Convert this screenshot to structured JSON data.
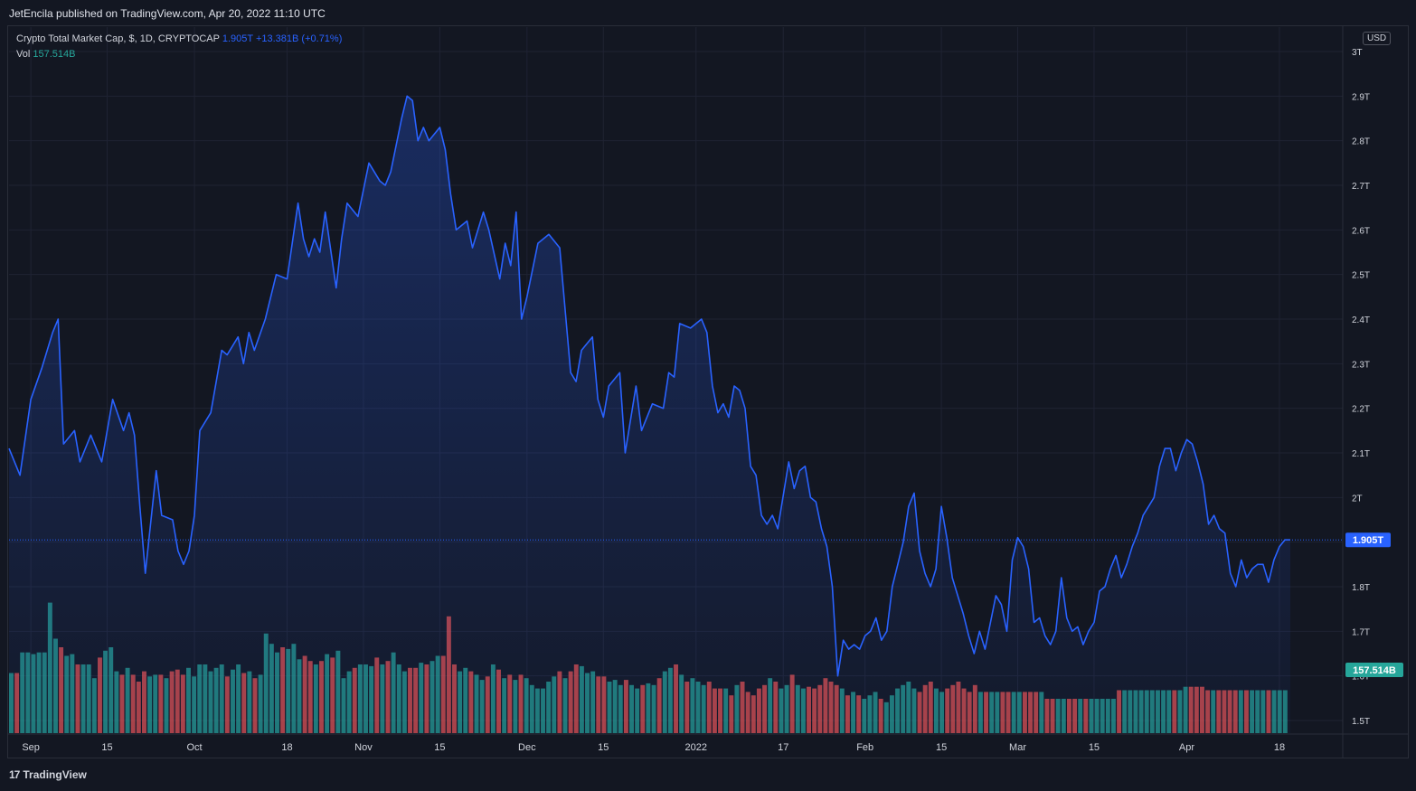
{
  "header": {
    "published": "JetEncila published on TradingView.com, Apr 20, 2022 11:10 UTC"
  },
  "legend": {
    "symbol": "Crypto Total Market Cap, $, 1D, CRYPTOCAP",
    "last": "1.905T",
    "change": "+13.381B (+0.71%)",
    "vol_label": "Vol",
    "vol_value": "157.514B"
  },
  "currency": "USD",
  "footer": {
    "brand": "TradingView",
    "logo_icon": "tradingview-logo-icon"
  },
  "colors": {
    "background": "#131722",
    "line": "#2962ff",
    "up_volume": "#26a69a",
    "down_volume": "#ef5350",
    "grid": "#1f2333",
    "text": "#d1d4dc"
  },
  "chart_data": {
    "type": "line",
    "title": "Crypto Total Market Cap, $, 1D, CRYPTOCAP",
    "ylabel": "",
    "y_ticks": [
      "1.5T",
      "1.6T",
      "1.7T",
      "1.8T",
      "1.9T",
      "2T",
      "2.1T",
      "2.2T",
      "2.3T",
      "2.4T",
      "2.5T",
      "2.6T",
      "2.7T",
      "2.8T",
      "2.9T",
      "3T"
    ],
    "y_tick_values": [
      1.5,
      1.6,
      1.7,
      1.8,
      1.9,
      2.0,
      2.1,
      2.2,
      2.3,
      2.4,
      2.5,
      2.6,
      2.7,
      2.8,
      2.9,
      3.0
    ],
    "ylim": [
      1.47,
      3.0
    ],
    "x_ticks": [
      {
        "label": "Sep",
        "date": "2021-09-01"
      },
      {
        "label": "15",
        "date": "2021-09-15"
      },
      {
        "label": "Oct",
        "date": "2021-10-01"
      },
      {
        "label": "18",
        "date": "2021-10-18"
      },
      {
        "label": "Nov",
        "date": "2021-11-01"
      },
      {
        "label": "15",
        "date": "2021-11-15"
      },
      {
        "label": "Dec",
        "date": "2021-12-01"
      },
      {
        "label": "15",
        "date": "2021-12-15"
      },
      {
        "label": "2022",
        "date": "2022-01-01"
      },
      {
        "label": "17",
        "date": "2022-01-17"
      },
      {
        "label": "Feb",
        "date": "2022-02-01"
      },
      {
        "label": "15",
        "date": "2022-02-15"
      },
      {
        "label": "Mar",
        "date": "2022-03-01"
      },
      {
        "label": "15",
        "date": "2022-03-15"
      },
      {
        "label": "Apr",
        "date": "2022-04-01"
      },
      {
        "label": "18",
        "date": "2022-04-18"
      }
    ],
    "start_date": "2021-08-28",
    "end_date": "2022-04-20",
    "last_value_label": "1.905T",
    "last_volume_label": "157.514B",
    "series": [
      {
        "name": "Crypto Total Market Cap",
        "points": [
          [
            "2021-08-28",
            2.11
          ],
          [
            "2021-08-30",
            2.05
          ],
          [
            "2021-09-01",
            2.22
          ],
          [
            "2021-09-03",
            2.29
          ],
          [
            "2021-09-05",
            2.37
          ],
          [
            "2021-09-06",
            2.4
          ],
          [
            "2021-09-07",
            2.12
          ],
          [
            "2021-09-09",
            2.15
          ],
          [
            "2021-09-10",
            2.08
          ],
          [
            "2021-09-12",
            2.14
          ],
          [
            "2021-09-14",
            2.08
          ],
          [
            "2021-09-16",
            2.22
          ],
          [
            "2021-09-18",
            2.15
          ],
          [
            "2021-09-19",
            2.19
          ],
          [
            "2021-09-20",
            2.14
          ],
          [
            "2021-09-21",
            1.98
          ],
          [
            "2021-09-22",
            1.83
          ],
          [
            "2021-09-24",
            2.06
          ],
          [
            "2021-09-25",
            1.96
          ],
          [
            "2021-09-27",
            1.95
          ],
          [
            "2021-09-28",
            1.88
          ],
          [
            "2021-09-29",
            1.85
          ],
          [
            "2021-09-30",
            1.88
          ],
          [
            "2021-10-01",
            1.96
          ],
          [
            "2021-10-02",
            2.15
          ],
          [
            "2021-10-04",
            2.19
          ],
          [
            "2021-10-06",
            2.33
          ],
          [
            "2021-10-07",
            2.32
          ],
          [
            "2021-10-09",
            2.36
          ],
          [
            "2021-10-10",
            2.3
          ],
          [
            "2021-10-11",
            2.37
          ],
          [
            "2021-10-12",
            2.33
          ],
          [
            "2021-10-14",
            2.4
          ],
          [
            "2021-10-16",
            2.5
          ],
          [
            "2021-10-18",
            2.49
          ],
          [
            "2021-10-20",
            2.66
          ],
          [
            "2021-10-21",
            2.58
          ],
          [
            "2021-10-22",
            2.54
          ],
          [
            "2021-10-23",
            2.58
          ],
          [
            "2021-10-24",
            2.55
          ],
          [
            "2021-10-25",
            2.64
          ],
          [
            "2021-10-27",
            2.47
          ],
          [
            "2021-10-28",
            2.58
          ],
          [
            "2021-10-29",
            2.66
          ],
          [
            "2021-10-31",
            2.63
          ],
          [
            "2021-11-02",
            2.75
          ],
          [
            "2021-11-04",
            2.71
          ],
          [
            "2021-11-05",
            2.7
          ],
          [
            "2021-11-06",
            2.73
          ],
          [
            "2021-11-08",
            2.85
          ],
          [
            "2021-11-09",
            2.9
          ],
          [
            "2021-11-10",
            2.89
          ],
          [
            "2021-11-11",
            2.8
          ],
          [
            "2021-11-12",
            2.83
          ],
          [
            "2021-11-13",
            2.8
          ],
          [
            "2021-11-15",
            2.83
          ],
          [
            "2021-11-16",
            2.78
          ],
          [
            "2021-11-17",
            2.68
          ],
          [
            "2021-11-18",
            2.6
          ],
          [
            "2021-11-20",
            2.62
          ],
          [
            "2021-11-21",
            2.56
          ],
          [
            "2021-11-23",
            2.64
          ],
          [
            "2021-11-24",
            2.6
          ],
          [
            "2021-11-26",
            2.49
          ],
          [
            "2021-11-27",
            2.57
          ],
          [
            "2021-11-28",
            2.52
          ],
          [
            "2021-11-29",
            2.64
          ],
          [
            "2021-11-30",
            2.4
          ],
          [
            "2021-12-01",
            2.45
          ],
          [
            "2021-12-03",
            2.57
          ],
          [
            "2021-12-05",
            2.59
          ],
          [
            "2021-12-07",
            2.56
          ],
          [
            "2021-12-09",
            2.28
          ],
          [
            "2021-12-10",
            2.26
          ],
          [
            "2021-12-11",
            2.33
          ],
          [
            "2021-12-13",
            2.36
          ],
          [
            "2021-12-14",
            2.22
          ],
          [
            "2021-12-15",
            2.18
          ],
          [
            "2021-12-16",
            2.25
          ],
          [
            "2021-12-18",
            2.28
          ],
          [
            "2021-12-19",
            2.1
          ],
          [
            "2021-12-21",
            2.25
          ],
          [
            "2021-12-22",
            2.15
          ],
          [
            "2021-12-24",
            2.21
          ],
          [
            "2021-12-26",
            2.2
          ],
          [
            "2021-12-27",
            2.28
          ],
          [
            "2021-12-28",
            2.27
          ],
          [
            "2021-12-29",
            2.39
          ],
          [
            "2021-12-31",
            2.38
          ],
          [
            "2022-01-02",
            2.4
          ],
          [
            "2022-01-03",
            2.37
          ],
          [
            "2022-01-04",
            2.25
          ],
          [
            "2022-01-05",
            2.19
          ],
          [
            "2022-01-06",
            2.21
          ],
          [
            "2022-01-07",
            2.18
          ],
          [
            "2022-01-08",
            2.25
          ],
          [
            "2022-01-09",
            2.24
          ],
          [
            "2022-01-10",
            2.2
          ],
          [
            "2022-01-11",
            2.07
          ],
          [
            "2022-01-12",
            2.05
          ],
          [
            "2022-01-13",
            1.96
          ],
          [
            "2022-01-14",
            1.94
          ],
          [
            "2022-01-15",
            1.96
          ],
          [
            "2022-01-16",
            1.93
          ],
          [
            "2022-01-18",
            2.08
          ],
          [
            "2022-01-19",
            2.02
          ],
          [
            "2022-01-20",
            2.06
          ],
          [
            "2022-01-21",
            2.07
          ],
          [
            "2022-01-22",
            2.0
          ],
          [
            "2022-01-23",
            1.99
          ],
          [
            "2022-01-24",
            1.93
          ],
          [
            "2022-01-25",
            1.89
          ],
          [
            "2022-01-26",
            1.8
          ],
          [
            "2022-01-27",
            1.6
          ],
          [
            "2022-01-28",
            1.68
          ],
          [
            "2022-01-29",
            1.66
          ],
          [
            "2022-01-30",
            1.67
          ],
          [
            "2022-01-31",
            1.66
          ],
          [
            "2022-02-01",
            1.69
          ],
          [
            "2022-02-02",
            1.7
          ],
          [
            "2022-02-03",
            1.73
          ],
          [
            "2022-02-04",
            1.68
          ],
          [
            "2022-02-05",
            1.7
          ],
          [
            "2022-02-06",
            1.8
          ],
          [
            "2022-02-07",
            1.85
          ],
          [
            "2022-02-08",
            1.9
          ],
          [
            "2022-02-09",
            1.98
          ],
          [
            "2022-02-10",
            2.01
          ],
          [
            "2022-02-11",
            1.88
          ],
          [
            "2022-02-12",
            1.83
          ],
          [
            "2022-02-13",
            1.8
          ],
          [
            "2022-02-14",
            1.84
          ],
          [
            "2022-02-15",
            1.98
          ],
          [
            "2022-02-16",
            1.91
          ],
          [
            "2022-02-17",
            1.82
          ],
          [
            "2022-02-18",
            1.78
          ],
          [
            "2022-02-19",
            1.74
          ],
          [
            "2022-02-20",
            1.69
          ],
          [
            "2022-02-21",
            1.65
          ],
          [
            "2022-02-22",
            1.7
          ],
          [
            "2022-02-23",
            1.66
          ],
          [
            "2022-02-24",
            1.72
          ],
          [
            "2022-02-25",
            1.78
          ],
          [
            "2022-02-26",
            1.76
          ],
          [
            "2022-02-27",
            1.7
          ],
          [
            "2022-02-28",
            1.86
          ],
          [
            "2022-03-01",
            1.91
          ],
          [
            "2022-03-02",
            1.89
          ],
          [
            "2022-03-03",
            1.84
          ],
          [
            "2022-03-04",
            1.72
          ],
          [
            "2022-03-05",
            1.73
          ],
          [
            "2022-03-06",
            1.69
          ],
          [
            "2022-03-07",
            1.67
          ],
          [
            "2022-03-08",
            1.7
          ],
          [
            "2022-03-09",
            1.82
          ],
          [
            "2022-03-10",
            1.73
          ],
          [
            "2022-03-11",
            1.7
          ],
          [
            "2022-03-12",
            1.71
          ],
          [
            "2022-03-13",
            1.67
          ],
          [
            "2022-03-14",
            1.7
          ],
          [
            "2022-03-15",
            1.72
          ],
          [
            "2022-03-16",
            1.79
          ],
          [
            "2022-03-17",
            1.8
          ],
          [
            "2022-03-18",
            1.84
          ],
          [
            "2022-03-19",
            1.87
          ],
          [
            "2022-03-20",
            1.82
          ],
          [
            "2022-03-21",
            1.85
          ],
          [
            "2022-03-22",
            1.89
          ],
          [
            "2022-03-23",
            1.92
          ],
          [
            "2022-03-24",
            1.96
          ],
          [
            "2022-03-25",
            1.98
          ],
          [
            "2022-03-26",
            2.0
          ],
          [
            "2022-03-27",
            2.07
          ],
          [
            "2022-03-28",
            2.11
          ],
          [
            "2022-03-29",
            2.11
          ],
          [
            "2022-03-30",
            2.06
          ],
          [
            "2022-03-31",
            2.1
          ],
          [
            "2022-04-01",
            2.13
          ],
          [
            "2022-04-02",
            2.12
          ],
          [
            "2022-04-03",
            2.08
          ],
          [
            "2022-04-04",
            2.03
          ],
          [
            "2022-04-05",
            1.94
          ],
          [
            "2022-04-06",
            1.96
          ],
          [
            "2022-04-07",
            1.93
          ],
          [
            "2022-04-08",
            1.92
          ],
          [
            "2022-04-09",
            1.83
          ],
          [
            "2022-04-10",
            1.8
          ],
          [
            "2022-04-11",
            1.86
          ],
          [
            "2022-04-12",
            1.82
          ],
          [
            "2022-04-13",
            1.84
          ],
          [
            "2022-04-14",
            1.85
          ],
          [
            "2022-04-15",
            1.85
          ],
          [
            "2022-04-16",
            1.81
          ],
          [
            "2022-04-17",
            1.86
          ],
          [
            "2022-04-18",
            1.89
          ],
          [
            "2022-04-19",
            1.905
          ],
          [
            "2022-04-20",
            1.905
          ]
        ]
      },
      {
        "name": "Vol",
        "type": "bar",
        "values_rel": [
          0.35,
          0.35,
          0.47,
          0.47,
          0.46,
          0.47,
          0.47,
          0.76,
          0.55,
          0.5,
          0.45,
          0.46,
          0.4,
          0.4,
          0.4,
          0.32,
          0.44,
          0.48,
          0.5,
          0.36,
          0.34,
          0.38,
          0.34,
          0.3,
          0.36,
          0.33,
          0.34,
          0.34,
          0.32,
          0.36,
          0.37,
          0.34,
          0.38,
          0.33,
          0.4,
          0.4,
          0.36,
          0.38,
          0.4,
          0.33,
          0.37,
          0.4,
          0.35,
          0.36,
          0.32,
          0.34,
          0.58,
          0.52,
          0.47,
          0.5,
          0.49,
          0.52,
          0.43,
          0.45,
          0.42,
          0.4,
          0.42,
          0.46,
          0.44,
          0.48,
          0.32,
          0.36,
          0.38,
          0.4,
          0.4,
          0.39,
          0.44,
          0.4,
          0.42,
          0.47,
          0.4,
          0.36,
          0.38,
          0.38,
          0.41,
          0.4,
          0.42,
          0.45,
          0.45,
          0.68,
          0.4,
          0.36,
          0.38,
          0.36,
          0.34,
          0.31,
          0.33,
          0.4,
          0.37,
          0.32,
          0.34,
          0.31,
          0.34,
          0.32,
          0.28,
          0.26,
          0.26,
          0.3,
          0.33,
          0.36,
          0.32,
          0.36,
          0.4,
          0.39,
          0.35,
          0.36,
          0.33,
          0.33,
          0.3,
          0.31,
          0.28,
          0.31,
          0.28,
          0.26,
          0.28,
          0.29,
          0.28,
          0.32,
          0.36,
          0.38,
          0.4,
          0.34,
          0.3,
          0.32,
          0.3,
          0.28,
          0.3,
          0.26,
          0.26,
          0.26,
          0.22,
          0.28,
          0.3,
          0.24,
          0.22,
          0.26,
          0.28,
          0.32,
          0.3,
          0.26,
          0.28,
          0.34,
          0.28,
          0.26,
          0.27,
          0.26,
          0.28,
          0.32,
          0.3,
          0.28,
          0.26,
          0.22,
          0.24,
          0.22,
          0.2,
          0.22,
          0.24,
          0.2,
          0.18,
          0.22,
          0.26,
          0.28,
          0.3,
          0.26,
          0.24,
          0.28,
          0.3,
          0.26,
          0.24,
          0.26,
          0.28,
          0.3,
          0.26,
          0.24,
          0.28,
          0.24,
          0.24,
          0.24,
          0.24,
          0.24,
          0.24,
          0.24,
          0.24,
          0.24,
          0.24,
          0.24,
          0.24,
          0.2,
          0.2,
          0.2,
          0.2,
          0.2,
          0.2,
          0.2,
          0.2,
          0.2,
          0.2,
          0.2,
          0.2,
          0.2,
          0.25,
          0.25,
          0.25,
          0.25,
          0.25,
          0.25,
          0.25,
          0.25,
          0.25,
          0.25,
          0.25,
          0.25,
          0.27,
          0.27,
          0.27,
          0.27,
          0.25,
          0.25,
          0.25,
          0.25,
          0.25,
          0.25,
          0.25,
          0.25,
          0.25,
          0.25,
          0.25,
          0.25,
          0.25,
          0.25,
          0.25
        ]
      }
    ],
    "grid": true,
    "legend_position": "top-left"
  }
}
